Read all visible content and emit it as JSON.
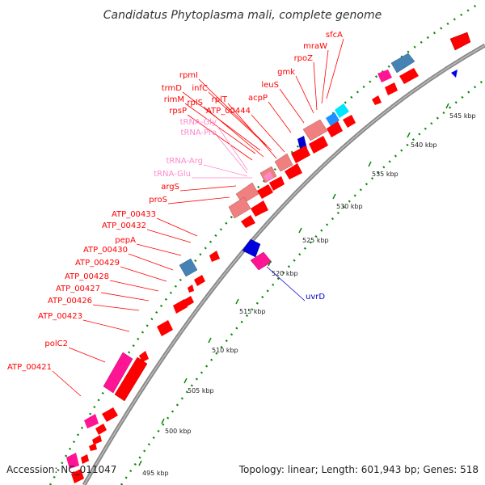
{
  "title": "Candidatus Phytoplasma mali, complete genome",
  "footer": {
    "accession": "Accession: NC_011047",
    "topology": "Topology: linear; Length: 601,943 bp; Genes: 518"
  },
  "colors": {
    "gene": "#ff0000",
    "trna": "#ff88cc",
    "rrna_light": "#f08080",
    "blue_gene": "#0000dd",
    "steel": "#4682b4",
    "magenta": "#ff1493",
    "backbone": "#888888",
    "tick": "#008000"
  },
  "kbp_marks": [
    "495 kbp",
    "500 kbp",
    "505 kbp",
    "510 kbp",
    "515 kbp",
    "520 kbp",
    "525 kbp",
    "530 kbp",
    "535 kbp",
    "540 kbp",
    "545 kbp"
  ],
  "gene_labels": [
    {
      "text": "sfcA",
      "kind": "gene"
    },
    {
      "text": "mraW",
      "kind": "gene"
    },
    {
      "text": "rpoZ",
      "kind": "gene"
    },
    {
      "text": "gmk",
      "kind": "gene"
    },
    {
      "text": "leuS",
      "kind": "gene"
    },
    {
      "text": "acpP",
      "kind": "gene"
    },
    {
      "text": "rpmI",
      "kind": "gene"
    },
    {
      "text": "trmD",
      "kind": "gene"
    },
    {
      "text": "infC",
      "kind": "gene"
    },
    {
      "text": "rimM",
      "kind": "gene"
    },
    {
      "text": "rplS",
      "kind": "gene"
    },
    {
      "text": "rplT",
      "kind": "gene"
    },
    {
      "text": "rpsP",
      "kind": "gene"
    },
    {
      "text": "ATP_00444",
      "kind": "gene"
    },
    {
      "text": "tRNA-Gly",
      "kind": "trna"
    },
    {
      "text": "tRNA-Pro",
      "kind": "trna"
    },
    {
      "text": "tRNA-Arg",
      "kind": "trna"
    },
    {
      "text": "tRNA-Glu",
      "kind": "trna"
    },
    {
      "text": "argS",
      "kind": "gene"
    },
    {
      "text": "proS",
      "kind": "gene"
    },
    {
      "text": "ATP_00433",
      "kind": "gene"
    },
    {
      "text": "ATP_00432",
      "kind": "gene"
    },
    {
      "text": "pepA",
      "kind": "gene"
    },
    {
      "text": "ATP_00430",
      "kind": "gene"
    },
    {
      "text": "ATP_00429",
      "kind": "gene"
    },
    {
      "text": "ATP_00428",
      "kind": "gene"
    },
    {
      "text": "ATP_00427",
      "kind": "gene"
    },
    {
      "text": "ATP_00426",
      "kind": "gene"
    },
    {
      "text": "ATP_00423",
      "kind": "gene"
    },
    {
      "text": "polC2",
      "kind": "gene"
    },
    {
      "text": "ATP_00421",
      "kind": "gene"
    },
    {
      "text": "uvrD",
      "kind": "blue"
    }
  ]
}
